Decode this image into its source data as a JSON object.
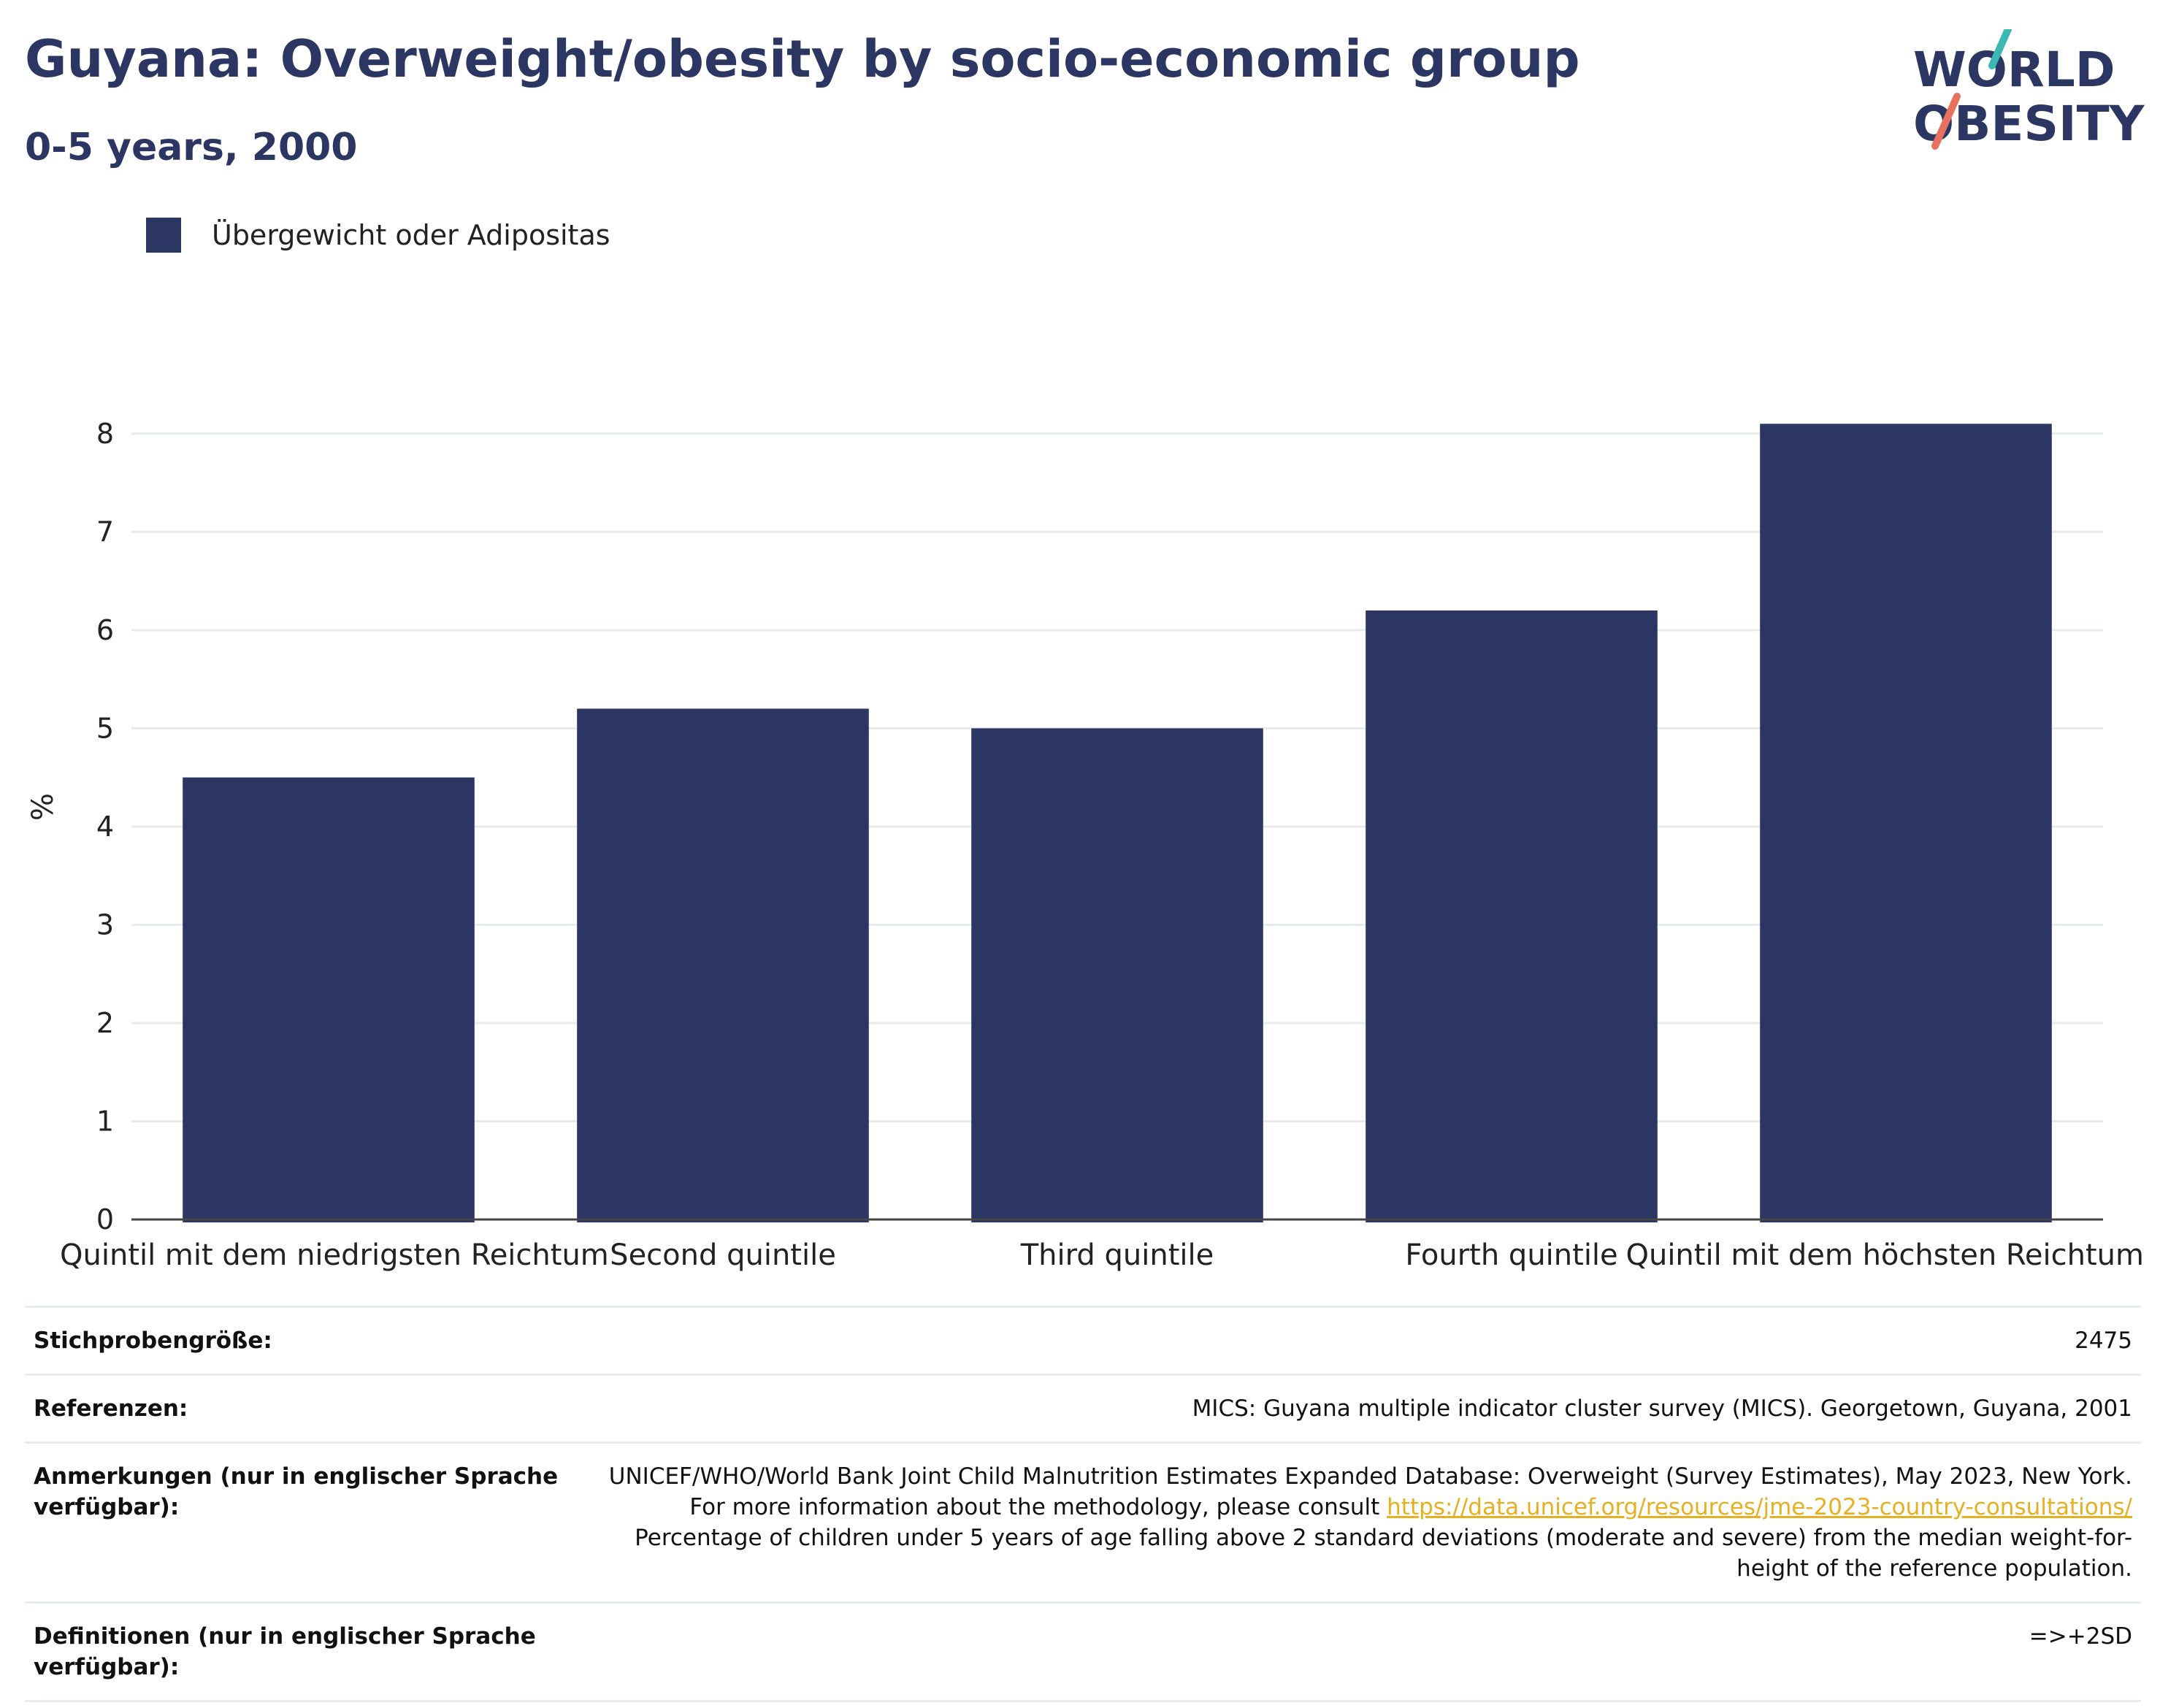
{
  "header": {
    "title": "Guyana: Overweight/obesity by socio-economic group",
    "subtitle": "0-5 years, 2000"
  },
  "logo": {
    "line1": "WORLD",
    "line2": "OBESITY",
    "accent_teal": "#3bb8b3",
    "accent_coral": "#e8705f"
  },
  "colors": {
    "bar": "#2b3663",
    "grid": "#e6e9ee",
    "axis": "#444444"
  },
  "chart_data": {
    "type": "bar",
    "categories": [
      "Quintil mit dem niedrigsten Reichtum",
      "Second quintile",
      "Third quintile",
      "Fourth quintile",
      "Quintil mit dem höchsten Reichtum"
    ],
    "series": [
      {
        "name": "Übergewicht oder Adipositas",
        "values": [
          4.5,
          5.2,
          5.0,
          6.2,
          8.1
        ]
      }
    ],
    "ylabel": "%",
    "ylim": [
      0,
      8.4
    ],
    "yticks": [
      0,
      1,
      2,
      3,
      4,
      5,
      6,
      7,
      8
    ],
    "grid": true,
    "legend_position": "top-left"
  },
  "info": {
    "sample_label": "Stichprobengröße:",
    "sample_value": "2475",
    "references_label": "Referenzen:",
    "references_value": "MICS: Guyana multiple indicator cluster survey (MICS). Georgetown, Guyana, 2001",
    "notes_label": "Anmerkungen (nur in englischer Sprache verfügbar):",
    "notes_text_1": "UNICEF/WHO/World Bank Joint Child Malnutrition Estimates Expanded Database: Overweight (Survey Estimates), May 2023, New York. For more information about the methodology, please consult",
    "notes_link": "https://data.unicef.org/resources/jme-2023-country-consultations/",
    "notes_text_2": "Percentage of children under 5 years of age falling above 2 standard deviations (moderate and severe) from the median weight-for-height of the reference population.",
    "definitions_label": "Definitionen (nur in englischer Sprache verfügbar):",
    "definitions_value": "=>+2SD"
  }
}
